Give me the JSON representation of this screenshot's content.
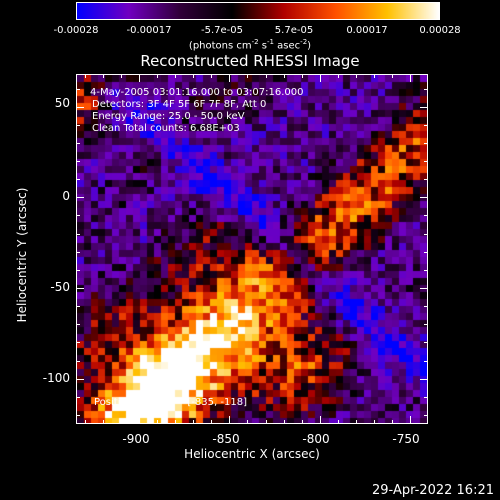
{
  "chart_data": {
    "type": "heatmap",
    "title": "Reconstructed RHESSI Image",
    "xlabel": "Heliocentric X (arcsec)",
    "ylabel": "Heliocentric Y (arcsec)",
    "xlim": [
      -935,
      -740
    ],
    "ylim": [
      -125,
      68
    ],
    "x_ticks": [
      -900,
      -850,
      -800,
      -750
    ],
    "y_ticks": [
      50,
      0,
      -50,
      -100
    ],
    "colorbar": {
      "ticks": [
        "-0.00028",
        "-0.00017",
        "-5.7e-05",
        "5.7e-05",
        "0.00017",
        "0.00028"
      ],
      "tick_values": [
        -0.00028,
        -0.00017,
        -5.7e-05,
        5.7e-05,
        0.00017,
        0.00028
      ],
      "units": "(photons cm-2 s-1 asec-2)",
      "range": [
        -0.00028,
        0.00028
      ],
      "colors": [
        "#0000ff",
        "#7000c0",
        "#300038",
        "#000000",
        "#b00000",
        "#ff5000",
        "#ffc000",
        "#ffffff"
      ]
    },
    "annotations": {
      "time_range": "4-May-2005 03:01:16.000 to 03:07:16.000",
      "detectors": "Detectors: 3F 4F 5F 6F 7F 8F, Att 0",
      "energy": "Energy Range: 25.0 - 50.0 keV",
      "clean": "Clean     Total counts: 6.68E+03",
      "peak": "Position of Peak = [-835, -118]"
    }
  },
  "footer": {
    "timestamp": "29-Apr-2022 16:21"
  }
}
